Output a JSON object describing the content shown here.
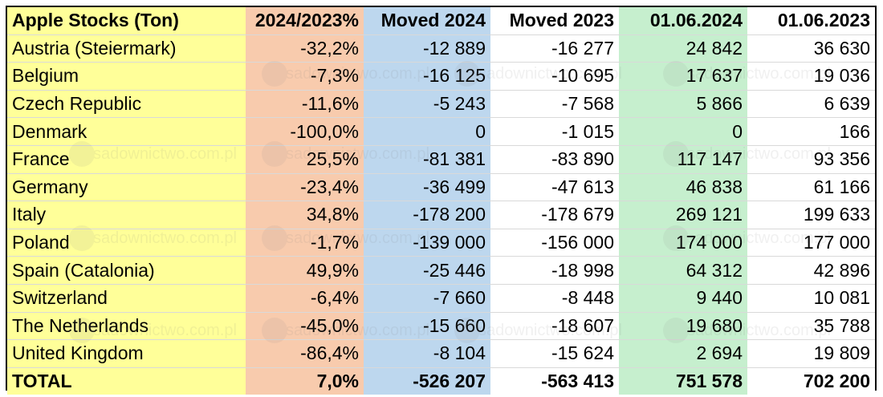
{
  "chart_data": {
    "type": "table",
    "columns": [
      "Apple Stocks (Ton)",
      "2024/2023%",
      "Moved 2024",
      "Moved 2023",
      "01.06.2024",
      "01.06.2023"
    ],
    "rows": [
      [
        "Austria (Steiermark)",
        "-32,2%",
        "-12 889",
        "-16 277",
        "24 842",
        "36 630"
      ],
      [
        "Belgium",
        "-7,3%",
        "-16 125",
        "-10 695",
        "17 637",
        "19 036"
      ],
      [
        "Czech Republic",
        "-11,6%",
        "-5 243",
        "-7 568",
        "5 866",
        "6 639"
      ],
      [
        "Denmark",
        "-100,0%",
        "0",
        "-1 015",
        "0",
        "166"
      ],
      [
        "France",
        "25,5%",
        "-81 381",
        "-83 890",
        "117 147",
        "93 356"
      ],
      [
        "Germany",
        "-23,4%",
        "-36 499",
        "-47 613",
        "46 838",
        "61 166"
      ],
      [
        "Italy",
        "34,8%",
        "-178 200",
        "-178 679",
        "269 121",
        "199 633"
      ],
      [
        "Poland",
        "-1,7%",
        "-139 000",
        "-156 000",
        "174 000",
        "177 000"
      ],
      [
        "Spain (Catalonia)",
        "49,9%",
        "-25 446",
        "-18 998",
        "64 312",
        "42 896"
      ],
      [
        "Switzerland",
        "-6,4%",
        "-7 660",
        "-8 448",
        "9 440",
        "10 081"
      ],
      [
        "The Netherlands",
        "-45,0%",
        "-15 660",
        "-18 607",
        "19 680",
        "35 788"
      ],
      [
        "United Kingdom",
        "-86,4%",
        "-8 104",
        "-15 624",
        "2 694",
        "19 809"
      ]
    ],
    "total": [
      "TOTAL",
      "7,0%",
      "-526 207",
      "-563 413",
      "751 578",
      "702 200"
    ]
  },
  "watermark": "sadownictwo.com.pl",
  "colors": {
    "name_col": "#ffff99",
    "pct_col": "#f8cbad",
    "moved_2024_col": "#bdd7ee",
    "stock_2024_col": "#c6efce"
  }
}
